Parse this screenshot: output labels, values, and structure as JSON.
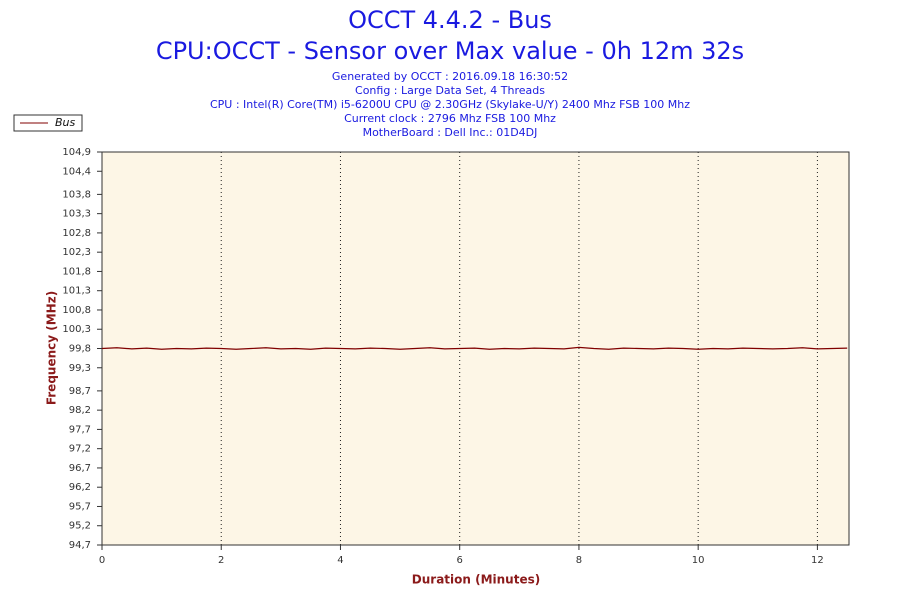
{
  "chart_data": {
    "type": "line",
    "title": "OCCT 4.4.2 - Bus",
    "subtitle": "CPU:OCCT - Sensor over Max value - 0h 12m 32s",
    "info": [
      "Generated by OCCT : 2016.09.18 16:30:52",
      "Config : Large Data Set, 4 Threads",
      "CPU : Intel(R) Core(TM) i5-6200U CPU @ 2.30GHz (Skylake-U/Y) 2400 Mhz FSB 100 Mhz",
      "Current clock : 2796 Mhz FSB 100 Mhz",
      "MotherBoard : Dell Inc.: 01D4DJ"
    ],
    "xlabel": "Duration (Minutes)",
    "ylabel": "Frequency (MHz)",
    "x": [
      0,
      0.25,
      0.5,
      0.75,
      1,
      1.25,
      1.5,
      1.75,
      2,
      2.25,
      2.5,
      2.75,
      3,
      3.25,
      3.5,
      3.75,
      4,
      4.25,
      4.5,
      4.75,
      5,
      5.25,
      5.5,
      5.75,
      6,
      6.25,
      6.5,
      6.75,
      7,
      7.25,
      7.5,
      7.75,
      8,
      8.25,
      8.5,
      8.75,
      9,
      9.25,
      9.5,
      9.75,
      10,
      10.25,
      10.5,
      10.75,
      11,
      11.25,
      11.5,
      11.75,
      12,
      12.25,
      12.5
    ],
    "series": [
      {
        "name": "Bus",
        "color": "#800000",
        "values": [
          99.8,
          99.82,
          99.79,
          99.81,
          99.78,
          99.8,
          99.79,
          99.81,
          99.8,
          99.78,
          99.8,
          99.82,
          99.79,
          99.8,
          99.78,
          99.81,
          99.8,
          99.79,
          99.81,
          99.8,
          99.78,
          99.8,
          99.82,
          99.79,
          99.8,
          99.81,
          99.78,
          99.8,
          99.79,
          99.81,
          99.8,
          99.79,
          99.83,
          99.8,
          99.78,
          99.81,
          99.8,
          99.79,
          99.81,
          99.8,
          99.78,
          99.8,
          99.79,
          99.81,
          99.8,
          99.79,
          99.8,
          99.82,
          99.79,
          99.8,
          99.81
        ]
      }
    ],
    "xlim": [
      0,
      12.53
    ],
    "xticks": [
      0,
      2,
      4,
      6,
      8,
      10,
      12
    ],
    "ylim": [
      94.7,
      104.9
    ],
    "yticks": [
      {
        "value": 94.7,
        "label": "94,7"
      },
      {
        "value": 95.2,
        "label": "95,2"
      },
      {
        "value": 95.7,
        "label": "95,7"
      },
      {
        "value": 96.2,
        "label": "96,2"
      },
      {
        "value": 96.7,
        "label": "96,7"
      },
      {
        "value": 97.2,
        "label": "97,2"
      },
      {
        "value": 97.7,
        "label": "97,7"
      },
      {
        "value": 98.2,
        "label": "98,2"
      },
      {
        "value": 98.7,
        "label": "98,7"
      },
      {
        "value": 99.3,
        "label": "99,3"
      },
      {
        "value": 99.8,
        "label": "99,8"
      },
      {
        "value": 100.3,
        "label": "100,3"
      },
      {
        "value": 100.8,
        "label": "100,8"
      },
      {
        "value": 101.3,
        "label": "101,3"
      },
      {
        "value": 101.8,
        "label": "101,8"
      },
      {
        "value": 102.3,
        "label": "102,3"
      },
      {
        "value": 102.8,
        "label": "102,8"
      },
      {
        "value": 103.3,
        "label": "103,3"
      },
      {
        "value": 103.8,
        "label": "103,8"
      },
      {
        "value": 104.4,
        "label": "104,4"
      },
      {
        "value": 104.9,
        "label": "104,9"
      }
    ],
    "grid": true,
    "legend": "top-left"
  }
}
